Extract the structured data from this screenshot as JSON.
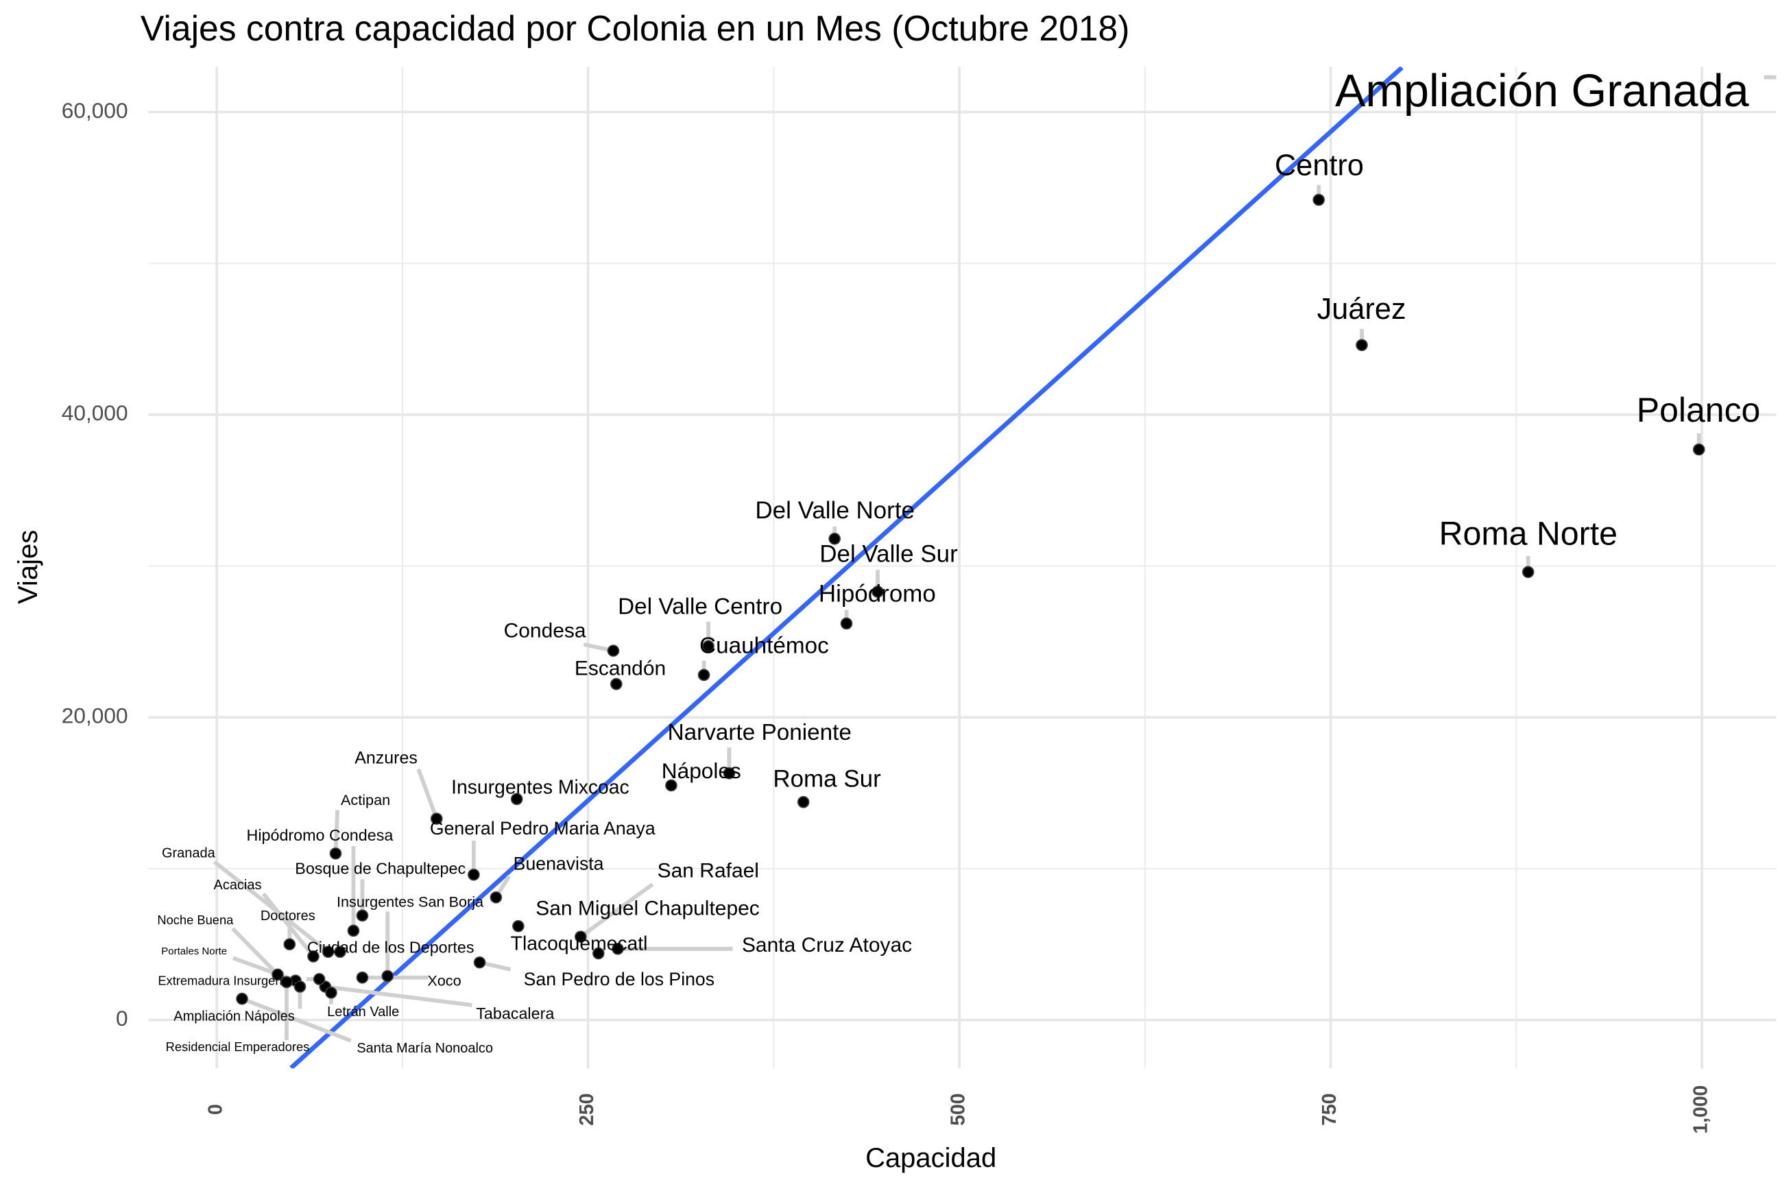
{
  "chart_data": {
    "type": "scatter",
    "title": "Viajes contra capacidad por Colonia en un Mes (Octubre 2018)",
    "x_label": "Capacidad",
    "y_label": "Viajes",
    "labels": [
      "Ampliación Granada",
      "Centro",
      "Juárez",
      "Polanco",
      "Roma Norte",
      "Del Valle Norte",
      "Del Valle Sur",
      "Hipódromo",
      "Del Valle Centro",
      "Cuauhtémoc",
      "Condesa",
      "Escandón",
      "Narvarte Poniente",
      "Nápoles",
      "Roma Sur",
      "Insurgentes Mixcoac",
      "Anzures",
      "General Pedro Maria Anaya",
      "Buenavista",
      "Hipódromo Condesa",
      "Actipan",
      "Bosque de Chapultepec",
      "Insurgentes San Borja",
      "San Rafael",
      "San Miguel Chapultepec",
      "Tlacoquemecatl",
      "Santa Cruz Atoyac",
      "San Pedro de los Pinos",
      "Xoco",
      "Tabacalera",
      "Ciudad de los Deportes",
      "Doctores",
      "Acacias",
      "Granada",
      "Noche Buena",
      "Portales Norte",
      "Extremadura Insurgentes",
      "Letrán Valle",
      "Ampliación Nápoles",
      "Residencial Emperadores",
      "Santa María Nonoalco"
    ],
    "x": [
      1070,
      742,
      771,
      998,
      883,
      416,
      445,
      424,
      331,
      328,
      267,
      269,
      345,
      306,
      395,
      202,
      148,
      173,
      188,
      92,
      80,
      98,
      115,
      245,
      203,
      257,
      270,
      177,
      98,
      73,
      83,
      49,
      65,
      75,
      41,
      53,
      69,
      77,
      56,
      47,
      17
    ],
    "values": [
      62300,
      54200,
      44600,
      37700,
      29600,
      31800,
      28300,
      26200,
      24700,
      22800,
      24400,
      22200,
      16300,
      15500,
      14400,
      14600,
      13300,
      9600,
      8100,
      5900,
      11000,
      6900,
      2900,
      5500,
      6200,
      4400,
      4700,
      3800,
      2800,
      2200,
      4500,
      5000,
      4200,
      4500,
      3000,
      2600,
      2700,
      1800,
      2200,
      2500,
      1400
    ],
    "color": "#000000",
    "fit_line": {
      "color": "#3366ff",
      "x": [
        50,
        798
      ],
      "y": [
        -3170,
        62940
      ]
    },
    "xlim": [
      -46,
      1050
    ],
    "ylim": [
      -3200,
      63000
    ],
    "xticks": [
      0,
      250,
      500,
      750,
      {
        "value": 1000,
        "label": "1,000"
      }
    ],
    "yticks": [
      0,
      {
        "value": 20000,
        "label": "20,000"
      },
      {
        "value": 40000,
        "label": "40,000"
      },
      {
        "value": 60000,
        "label": "60,000"
      }
    ],
    "x_minor_grid": [
      125,
      375,
      625,
      875
    ],
    "y_minor_grid": [
      10000,
      30000,
      50000
    ],
    "grid": true
  }
}
